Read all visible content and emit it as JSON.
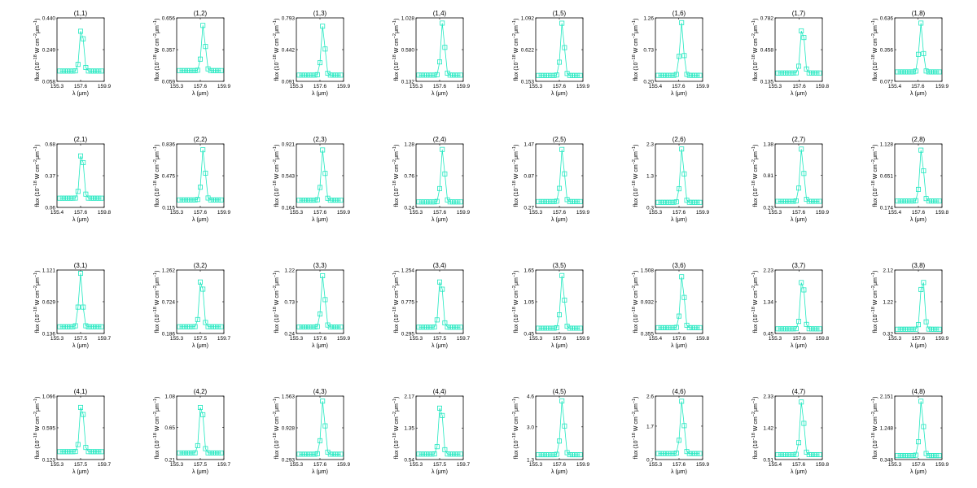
{
  "style": {
    "marker_color": "#20e8c0",
    "axis_color": "#000000",
    "background": "#ffffff"
  },
  "axis_labels": {
    "xlabel": "λ (μm)",
    "ylabel_prefix": "flux (10",
    "ylabel_exp1": "−18",
    "ylabel_mid": " W cm",
    "ylabel_exp2": "−2",
    "ylabel_mu": "μm",
    "ylabel_exp3": "−1",
    "ylabel_suffix": ")"
  },
  "chart_data": [
    {
      "type": "scatter",
      "title": "(1,1)",
      "x_ticks": [
        "155.3",
        "157.6",
        "159.9"
      ],
      "y_ticks": [
        "0.058",
        "0.249",
        "0.440"
      ],
      "xlim": [
        155.3,
        159.9
      ],
      "ylim": [
        0.058,
        0.44
      ],
      "peak_x": 157.7,
      "peak_y": 0.4,
      "base_y": 0.12
    },
    {
      "type": "scatter",
      "title": "(1,2)",
      "x_ticks": [
        "155.3",
        "157.6",
        "159.9"
      ],
      "y_ticks": [
        "0.059",
        "0.357",
        "0.656"
      ],
      "xlim": [
        155.3,
        159.9
      ],
      "ylim": [
        0.059,
        0.656
      ],
      "peak_x": 157.9,
      "peak_y": 0.6,
      "base_y": 0.16
    },
    {
      "type": "scatter",
      "title": "(1,3)",
      "x_ticks": [
        "155.3",
        "157.6",
        "159.9"
      ],
      "y_ticks": [
        "0.091",
        "0.442",
        "0.793"
      ],
      "xlim": [
        155.3,
        159.9
      ],
      "ylim": [
        0.091,
        0.793
      ],
      "peak_x": 157.9,
      "peak_y": 0.72,
      "base_y": 0.16
    },
    {
      "type": "scatter",
      "title": "(1,4)",
      "x_ticks": [
        "155.3",
        "157.6",
        "159.9"
      ],
      "y_ticks": [
        "0.132",
        "0.580",
        "1.028"
      ],
      "xlim": [
        155.3,
        159.9
      ],
      "ylim": [
        0.132,
        1.028
      ],
      "peak_x": 157.9,
      "peak_y": 0.98,
      "base_y": 0.22
    },
    {
      "type": "scatter",
      "title": "(1,5)",
      "x_ticks": [
        "155.3",
        "157.6",
        "159.9"
      ],
      "y_ticks": [
        "0.153",
        "0.622",
        "1.092"
      ],
      "xlim": [
        155.3,
        159.9
      ],
      "ylim": [
        0.153,
        1.092
      ],
      "peak_x": 157.9,
      "peak_y": 1.04,
      "base_y": 0.24
    },
    {
      "type": "scatter",
      "title": "(1,6)",
      "x_ticks": [
        "155.4",
        "157.6",
        "159.9"
      ],
      "y_ticks": [
        "0.20",
        "0.73",
        "1.26"
      ],
      "xlim": [
        155.4,
        159.9
      ],
      "ylim": [
        0.2,
        1.26
      ],
      "peak_x": 157.9,
      "peak_y": 1.18,
      "base_y": 0.3
    },
    {
      "type": "scatter",
      "title": "(1,7)",
      "x_ticks": [
        "155.3",
        "157.6",
        "159.8"
      ],
      "y_ticks": [
        "0.135",
        "0.458",
        "0.782"
      ],
      "xlim": [
        155.3,
        159.8
      ],
      "ylim": [
        0.135,
        0.782
      ],
      "peak_x": 157.9,
      "peak_y": 0.73,
      "base_y": 0.22
    },
    {
      "type": "scatter",
      "title": "(1,8)",
      "x_ticks": [
        "155.4",
        "157.6",
        "159.9"
      ],
      "y_ticks": [
        "0.077",
        "0.356",
        "0.636"
      ],
      "xlim": [
        155.4,
        159.9
      ],
      "ylim": [
        0.077,
        0.636
      ],
      "peak_x": 157.9,
      "peak_y": 0.59,
      "base_y": 0.16
    },
    {
      "type": "scatter",
      "title": "(2,1)",
      "x_ticks": [
        "155.4",
        "157.6",
        "159.8"
      ],
      "y_ticks": [
        "0.06",
        "0.37",
        "0.68"
      ],
      "xlim": [
        155.4,
        159.8
      ],
      "ylim": [
        0.06,
        0.68
      ],
      "peak_x": 157.7,
      "peak_y": 0.64,
      "base_y": 0.15
    },
    {
      "type": "scatter",
      "title": "(2,2)",
      "x_ticks": [
        "155.3",
        "157.6",
        "159.9"
      ],
      "y_ticks": [
        "0.115",
        "0.475",
        "0.836"
      ],
      "xlim": [
        155.3,
        159.9
      ],
      "ylim": [
        0.115,
        0.836
      ],
      "peak_x": 157.9,
      "peak_y": 0.79,
      "base_y": 0.2
    },
    {
      "type": "scatter",
      "title": "(2,3)",
      "x_ticks": [
        "155.3",
        "157.6",
        "159.9"
      ],
      "y_ticks": [
        "0.164",
        "0.543",
        "0.921"
      ],
      "xlim": [
        155.3,
        159.9
      ],
      "ylim": [
        0.164,
        0.921
      ],
      "peak_x": 157.9,
      "peak_y": 0.87,
      "base_y": 0.25
    },
    {
      "type": "scatter",
      "title": "(2,4)",
      "x_ticks": [
        "155.3",
        "157.6",
        "159.9"
      ],
      "y_ticks": [
        "0.24",
        "0.76",
        "1.28"
      ],
      "xlim": [
        155.3,
        159.9
      ],
      "ylim": [
        0.24,
        1.28
      ],
      "peak_x": 157.9,
      "peak_y": 1.22,
      "base_y": 0.33
    },
    {
      "type": "scatter",
      "title": "(2,5)",
      "x_ticks": [
        "155.3",
        "157.6",
        "159.9"
      ],
      "y_ticks": [
        "0.27",
        "0.87",
        "1.47"
      ],
      "xlim": [
        155.3,
        159.9
      ],
      "ylim": [
        0.27,
        1.47
      ],
      "peak_x": 157.9,
      "peak_y": 1.4,
      "base_y": 0.38
    },
    {
      "type": "scatter",
      "title": "(2,6)",
      "x_ticks": [
        "155.3",
        "157.6",
        "159.9"
      ],
      "y_ticks": [
        "0.3",
        "1.3",
        "2.3"
      ],
      "xlim": [
        155.3,
        159.9
      ],
      "ylim": [
        0.3,
        2.3
      ],
      "peak_x": 157.9,
      "peak_y": 2.2,
      "base_y": 0.46
    },
    {
      "type": "scatter",
      "title": "(2,7)",
      "x_ticks": [
        "155.3",
        "157.6",
        "159.9"
      ],
      "y_ticks": [
        "0.23",
        "0.81",
        "1.38"
      ],
      "xlim": [
        155.3,
        159.9
      ],
      "ylim": [
        0.23,
        1.38
      ],
      "peak_x": 157.9,
      "peak_y": 1.32,
      "base_y": 0.34
    },
    {
      "type": "scatter",
      "title": "(2,8)",
      "x_ticks": [
        "155.4",
        "157.6",
        "159.8"
      ],
      "y_ticks": [
        "0.174",
        "0.651",
        "1.128"
      ],
      "xlim": [
        155.4,
        159.8
      ],
      "ylim": [
        0.174,
        1.128
      ],
      "peak_x": 157.9,
      "peak_y": 1.08,
      "base_y": 0.27
    },
    {
      "type": "scatter",
      "title": "(3,1)",
      "x_ticks": [
        "155.3",
        "157.5",
        "159.7"
      ],
      "y_ticks": [
        "0.136",
        "0.629",
        "1.121"
      ],
      "xlim": [
        155.3,
        159.7
      ],
      "ylim": [
        0.136,
        1.121
      ],
      "peak_x": 157.5,
      "peak_y": 1.07,
      "base_y": 0.24
    },
    {
      "type": "scatter",
      "title": "(3,2)",
      "x_ticks": [
        "155.3",
        "157.5",
        "159.7"
      ],
      "y_ticks": [
        "0.186",
        "0.724",
        "1.262"
      ],
      "xlim": [
        155.3,
        159.7
      ],
      "ylim": [
        0.186,
        1.262
      ],
      "peak_x": 157.6,
      "peak_y": 1.2,
      "base_y": 0.3
    },
    {
      "type": "scatter",
      "title": "(3,3)",
      "x_ticks": [
        "155.3",
        "157.6",
        "159.9"
      ],
      "y_ticks": [
        "0.24",
        "0.73",
        "1.22"
      ],
      "xlim": [
        155.3,
        159.9
      ],
      "ylim": [
        0.24,
        1.22
      ],
      "peak_x": 157.9,
      "peak_y": 1.16,
      "base_y": 0.34
    },
    {
      "type": "scatter",
      "title": "(3,4)",
      "x_ticks": [
        "155.3",
        "157.5",
        "159.7"
      ],
      "y_ticks": [
        "0.295",
        "0.775",
        "1.254"
      ],
      "xlim": [
        155.3,
        159.7
      ],
      "ylim": [
        0.295,
        1.254
      ],
      "peak_x": 157.6,
      "peak_y": 1.2,
      "base_y": 0.39
    },
    {
      "type": "scatter",
      "title": "(3,5)",
      "x_ticks": [
        "155.3",
        "157.6",
        "159.9"
      ],
      "y_ticks": [
        "0.45",
        "1.05",
        "1.65"
      ],
      "xlim": [
        155.3,
        159.9
      ],
      "ylim": [
        0.45,
        1.65
      ],
      "peak_x": 157.9,
      "peak_y": 1.58,
      "base_y": 0.55
    },
    {
      "type": "scatter",
      "title": "(3,6)",
      "x_ticks": [
        "155.4",
        "157.6",
        "159.8"
      ],
      "y_ticks": [
        "0.355",
        "0.932",
        "1.508"
      ],
      "xlim": [
        155.4,
        159.8
      ],
      "ylim": [
        0.355,
        1.508
      ],
      "peak_x": 157.9,
      "peak_y": 1.44,
      "base_y": 0.46
    },
    {
      "type": "scatter",
      "title": "(3,7)",
      "x_ticks": [
        "155.3",
        "157.6",
        "159.8"
      ],
      "y_ticks": [
        "0.45",
        "1.34",
        "2.23"
      ],
      "xlim": [
        155.3,
        159.8
      ],
      "ylim": [
        0.45,
        2.23
      ],
      "peak_x": 157.9,
      "peak_y": 2.12,
      "base_y": 0.58
    },
    {
      "type": "scatter",
      "title": "(3,8)",
      "x_ticks": [
        "155.3",
        "157.6",
        "159.9"
      ],
      "y_ticks": [
        "0.32",
        "1.22",
        "2.12"
      ],
      "xlim": [
        155.3,
        159.9
      ],
      "ylim": [
        0.32,
        2.12
      ],
      "peak_x": 158.0,
      "peak_y": 2.02,
      "base_y": 0.44
    },
    {
      "type": "scatter",
      "title": "(4,1)",
      "x_ticks": [
        "155.3",
        "157.5",
        "159.7"
      ],
      "y_ticks": [
        "0.123",
        "0.595",
        "1.066"
      ],
      "xlim": [
        155.3,
        159.7
      ],
      "ylim": [
        0.123,
        1.066
      ],
      "peak_x": 157.6,
      "peak_y": 1.02,
      "base_y": 0.24
    },
    {
      "type": "scatter",
      "title": "(4,2)",
      "x_ticks": [
        "155.3",
        "157.5",
        "159.7"
      ],
      "y_ticks": [
        "0.21",
        "0.65",
        "1.08"
      ],
      "xlim": [
        155.3,
        159.7
      ],
      "ylim": [
        0.21,
        1.08
      ],
      "peak_x": 157.6,
      "peak_y": 1.04,
      "base_y": 0.3
    },
    {
      "type": "scatter",
      "title": "(4,3)",
      "x_ticks": [
        "155.3",
        "157.6",
        "159.9"
      ],
      "y_ticks": [
        "0.293",
        "0.928",
        "1.563"
      ],
      "xlim": [
        155.3,
        159.9
      ],
      "ylim": [
        0.293,
        1.563
      ],
      "peak_x": 157.9,
      "peak_y": 1.5,
      "base_y": 0.4
    },
    {
      "type": "scatter",
      "title": "(4,4)",
      "x_ticks": [
        "155.3",
        "157.5",
        "159.7"
      ],
      "y_ticks": [
        "0.54",
        "1.35",
        "2.17"
      ],
      "xlim": [
        155.3,
        159.7
      ],
      "ylim": [
        0.54,
        2.17
      ],
      "peak_x": 157.6,
      "peak_y": 2.08,
      "base_y": 0.68
    },
    {
      "type": "scatter",
      "title": "(4,5)",
      "x_ticks": [
        "155.3",
        "157.6",
        "159.9"
      ],
      "y_ticks": [
        "1.3",
        "3.0",
        "4.6"
      ],
      "xlim": [
        155.3,
        159.9
      ],
      "ylim": [
        1.3,
        4.6
      ],
      "peak_x": 157.9,
      "peak_y": 4.45,
      "base_y": 1.55
    },
    {
      "type": "scatter",
      "title": "(4,6)",
      "x_ticks": [
        "155.3",
        "157.6",
        "159.9"
      ],
      "y_ticks": [
        "0.7",
        "1.7",
        "2.6"
      ],
      "xlim": [
        155.3,
        159.9
      ],
      "ylim": [
        0.7,
        2.6
      ],
      "peak_x": 157.9,
      "peak_y": 2.5,
      "base_y": 0.88
    },
    {
      "type": "scatter",
      "title": "(4,7)",
      "x_ticks": [
        "155.4",
        "157.6",
        "159.8"
      ],
      "y_ticks": [
        "0.51",
        "1.42",
        "2.33"
      ],
      "xlim": [
        155.4,
        159.8
      ],
      "ylim": [
        0.51,
        2.33
      ],
      "peak_x": 157.9,
      "peak_y": 2.25,
      "base_y": 0.65
    },
    {
      "type": "scatter",
      "title": "(4,8)",
      "x_ticks": [
        "155.3",
        "157.6",
        "159.9"
      ],
      "y_ticks": [
        "0.348",
        "1.248",
        "2.151"
      ],
      "xlim": [
        155.3,
        159.9
      ],
      "ylim": [
        0.348,
        2.151
      ],
      "peak_x": 157.9,
      "peak_y": 2.06,
      "base_y": 0.46
    }
  ]
}
